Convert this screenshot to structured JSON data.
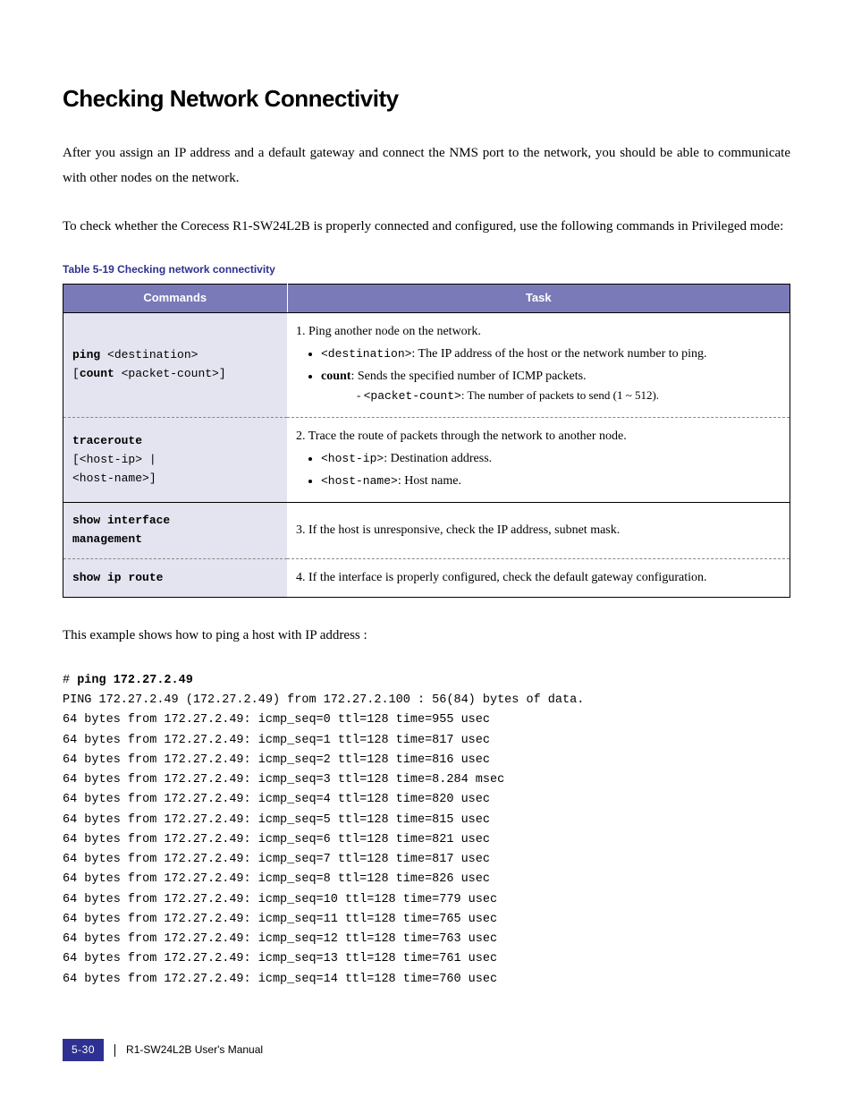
{
  "heading": "Checking Network Connectivity",
  "para1": "After you assign an IP address and a default gateway and connect the NMS port to the network, you should be able to communicate with other nodes on the network.",
  "para2": "To check whether the Corecess R1-SW24L2B is properly connected and configured, use the following commands in Privileged mode:",
  "table": {
    "caption": "Table 5-19   Checking network connectivity",
    "headers": {
      "col1": "Commands",
      "col2": "Task"
    },
    "rows": [
      {
        "cmd_html": "<b>ping</b> &lt;destination&gt;<br>[<b>count</b> &lt;packet-count&gt;]",
        "task_html": "1. Ping another node on the network.<ul class='task-list'><li><span class='mono'>&lt;destination&gt;</span>: The IP address of the host or the network number to ping.</li><li><b>count</b>: Sends the specified number of ICMP packets.<span class='sub'>- <span class='mono'>&lt;packet-count&gt;</span>: The number of packets to send (1 ~ 512).</span></li></ul>",
        "solid": false
      },
      {
        "cmd_html": "<b>traceroute</b><br>[&lt;host-ip&gt; |<br>&lt;host-name&gt;]",
        "task_html": "2. Trace the route of packets through the network to another node.<ul class='task-list'><li><span class='mono'>&lt;host-ip&gt;</span>: Destination address.</li><li><span class='mono'>&lt;host-name&gt;</span>: Host name.</li></ul>",
        "solid": true
      },
      {
        "cmd_html": "<b>show interface<br>management</b>",
        "task_html": "3. If the host is unresponsive, check the IP address, subnet mask.",
        "solid": false
      },
      {
        "cmd_html": "<b>show ip route</b>",
        "task_html": "4. If the interface is properly configured, check the default gateway configuration.",
        "solid": true
      }
    ]
  },
  "para3": "This example shows how to ping a host with IP address                    :",
  "output": {
    "prompt": "# ",
    "cmd": "ping 172.27.2.49",
    "lines": [
      "PING 172.27.2.49 (172.27.2.49) from 172.27.2.100 : 56(84) bytes of data.",
      "64 bytes from 172.27.2.49: icmp_seq=0 ttl=128 time=955 usec",
      "64 bytes from 172.27.2.49: icmp_seq=1 ttl=128 time=817 usec",
      "64 bytes from 172.27.2.49: icmp_seq=2 ttl=128 time=816 usec",
      "64 bytes from 172.27.2.49: icmp_seq=3 ttl=128 time=8.284 msec",
      "64 bytes from 172.27.2.49: icmp_seq=4 ttl=128 time=820 usec",
      "64 bytes from 172.27.2.49: icmp_seq=5 ttl=128 time=815 usec",
      "64 bytes from 172.27.2.49: icmp_seq=6 ttl=128 time=821 usec",
      "64 bytes from 172.27.2.49: icmp_seq=7 ttl=128 time=817 usec",
      "64 bytes from 172.27.2.49: icmp_seq=8 ttl=128 time=826 usec",
      "64 bytes from 172.27.2.49: icmp_seq=10 ttl=128 time=779 usec",
      "64 bytes from 172.27.2.49: icmp_seq=11 ttl=128 time=765 usec",
      "64 bytes from 172.27.2.49: icmp_seq=12 ttl=128 time=763 usec",
      "64 bytes from 172.27.2.49: icmp_seq=13 ttl=128 time=761 usec",
      "64 bytes from 172.27.2.49: icmp_seq=14 ttl=128 time=760 usec"
    ]
  },
  "footer": {
    "page": "5-30",
    "doc": "R1-SW24L2B   User's Manual"
  }
}
